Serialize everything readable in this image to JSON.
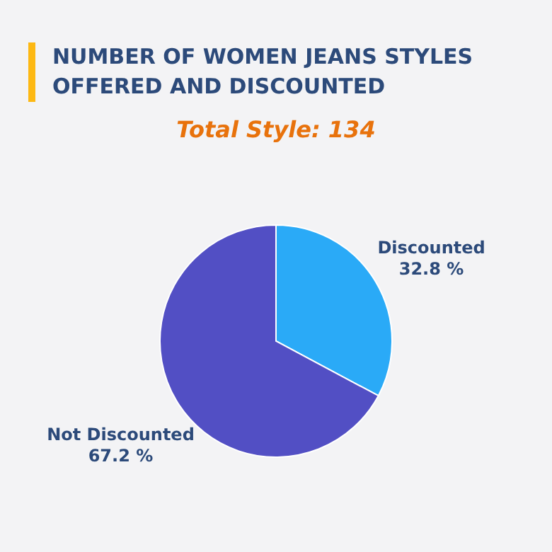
{
  "chart_data": {
    "type": "pie",
    "title": "NUMBER OF WOMEN JEANS STYLES OFFERED AND DISCOUNTED",
    "subtitle": "Total Style: 134",
    "categories": [
      "Discounted",
      "Not Discounted"
    ],
    "values": [
      32.8,
      67.2
    ],
    "colors": [
      "#2aaaf7",
      "#524fc4"
    ],
    "value_labels": [
      "32.8 %",
      "67.2 %"
    ],
    "legend": false
  }
}
